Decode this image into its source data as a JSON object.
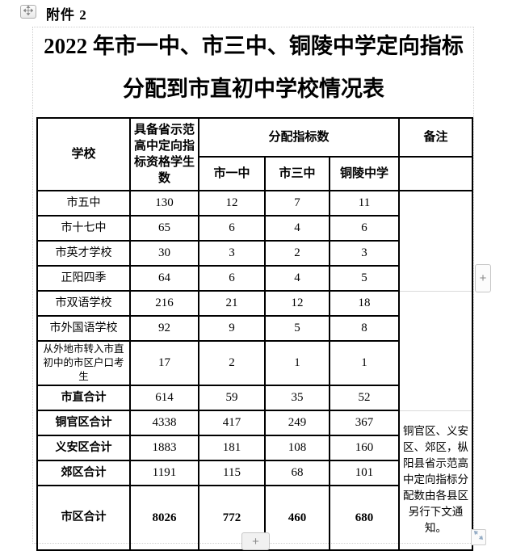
{
  "page": {
    "attachment_label": "附件 2",
    "title_line1": "2022 年市一中、市三中、铜陵中学定向指标",
    "title_line2": "分配到市直初中学校情况表"
  },
  "table": {
    "header": {
      "school": "学校",
      "eligible": "具备省示范高中定向指标资格学生数",
      "allocation_group": "分配指标数",
      "schools": [
        "市一中",
        "市三中",
        "铜陵中学"
      ],
      "remark": "备注"
    },
    "rows": [
      {
        "label": "市五中",
        "eligible": "130",
        "values": [
          "12",
          "7",
          "11"
        ]
      },
      {
        "label": "市十七中",
        "eligible": "65",
        "values": [
          "6",
          "4",
          "6"
        ]
      },
      {
        "label": "市英才学校",
        "eligible": "30",
        "values": [
          "3",
          "2",
          "3"
        ]
      },
      {
        "label": "正阳四季",
        "eligible": "64",
        "values": [
          "6",
          "4",
          "5"
        ]
      },
      {
        "label": "市双语学校",
        "eligible": "216",
        "values": [
          "21",
          "12",
          "18"
        ]
      },
      {
        "label": "市外国语学校",
        "eligible": "92",
        "values": [
          "9",
          "5",
          "8"
        ]
      },
      {
        "label": "从外地市转入市直初中的市区户口考生",
        "eligible": "17",
        "values": [
          "2",
          "1",
          "1"
        ],
        "small_label": true
      },
      {
        "label": "市直合计",
        "eligible": "614",
        "values": [
          "59",
          "35",
          "52"
        ],
        "label_bold": true
      },
      {
        "label": "铜官区合计",
        "eligible": "4338",
        "values": [
          "417",
          "249",
          "367"
        ],
        "label_bold": true
      },
      {
        "label": "义安区合计",
        "eligible": "1883",
        "values": [
          "181",
          "108",
          "160"
        ],
        "label_bold": true
      },
      {
        "label": "郊区合计",
        "eligible": "1191",
        "values": [
          "115",
          "68",
          "101"
        ],
        "label_bold": true
      },
      {
        "label": "市区合计",
        "eligible": "8026",
        "values": [
          "772",
          "460",
          "680"
        ],
        "label_bold": true,
        "values_bold": true,
        "tall": true
      }
    ],
    "remark_cells": [
      {
        "row": 0,
        "rowspan": 4,
        "text": ""
      },
      {
        "row": 4,
        "rowspan": 4,
        "text": ""
      },
      {
        "row": 8,
        "rowspan": 4,
        "text": "铜官区、义安区、郊区，枞阳县省示范高中定向指标分配数由各县区另行下文通知。"
      }
    ]
  },
  "controls": {
    "add_column_label": "+",
    "add_row_label": "+"
  },
  "colors": {
    "table_border": "#000000",
    "faint_border": "#dadada",
    "control_border": "#c6c6c6",
    "move_arrow": "#828282",
    "resize_arrow": "#93abc4"
  }
}
